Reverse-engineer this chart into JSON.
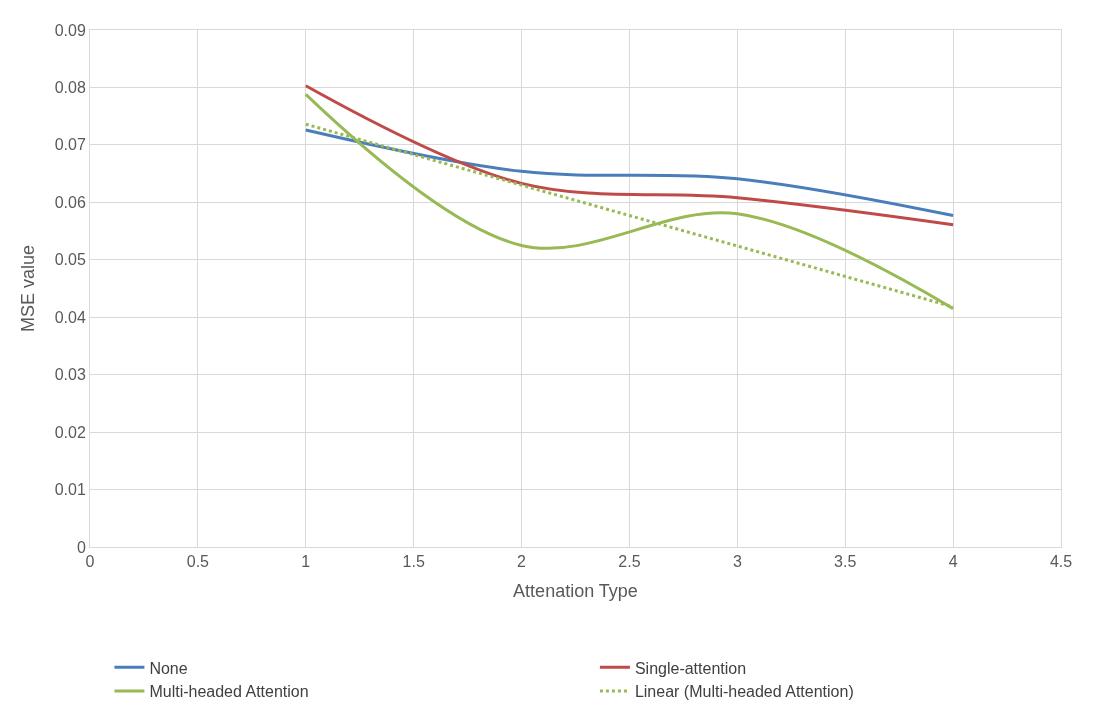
{
  "chart_data": {
    "type": "line",
    "xlabel": "Attenation Type",
    "ylabel": "MSE value",
    "x": [
      1,
      2,
      3,
      4
    ],
    "series": [
      {
        "name": "None",
        "color": "#4a7ebb",
        "values": [
          0.0726,
          0.0654,
          0.0641,
          0.0577
        ]
      },
      {
        "name": "Single-attention",
        "color": "#be4b48",
        "values": [
          0.0803,
          0.0633,
          0.0608,
          0.0561
        ]
      },
      {
        "name": "Multi-headed Attention",
        "color": "#98b954",
        "values": [
          0.0788,
          0.0525,
          0.058,
          0.0415
        ]
      },
      {
        "name": "Linear (Multi-headed Attention)",
        "color": "#98b954",
        "x": [
          1,
          4
        ],
        "values": [
          0.0736,
          0.0418
        ],
        "line_style": "dotted"
      }
    ],
    "xlim": [
      0,
      4.5
    ],
    "xticks": [
      0,
      0.5,
      1,
      1.5,
      2,
      2.5,
      3,
      3.5,
      4,
      4.5
    ],
    "ylim": [
      0,
      0.09
    ],
    "yticks": [
      0,
      0.01,
      0.02,
      0.03,
      0.04,
      0.05,
      0.06,
      0.07,
      0.08,
      0.09
    ],
    "grid": true,
    "legend": "bottom",
    "marker": "none",
    "line_style": "solid"
  }
}
